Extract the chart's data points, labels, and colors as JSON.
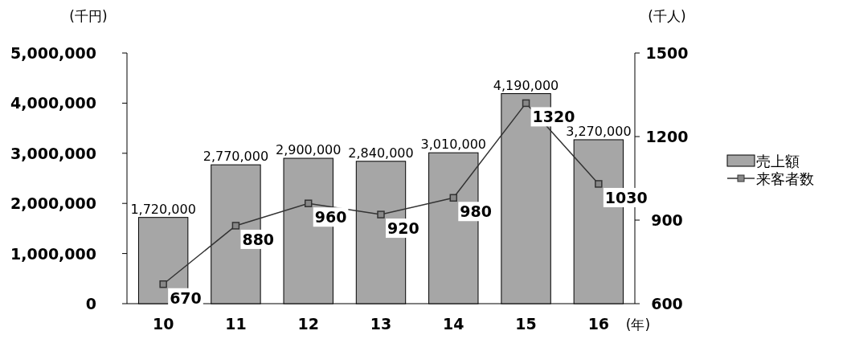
{
  "chart_data": {
    "type": "bar",
    "categories": [
      "10",
      "11",
      "12",
      "13",
      "14",
      "15",
      "16"
    ],
    "xlabel": "(年)",
    "ylabel": "(千円)",
    "y2label": "(千人)",
    "series": [
      {
        "name": "売上額",
        "color": "#a6a6a6",
        "values": [
          1720000,
          2770000,
          2900000,
          2840000,
          3010000,
          4190000,
          3270000
        ],
        "value_labels": [
          "1,720,000",
          "2,770,000",
          "2,900,000",
          "2,840,000",
          "3,010,000",
          "4,190,000",
          "3,270,000"
        ]
      },
      {
        "name": "来客者数",
        "type": "line",
        "axis": "y2",
        "color": "#333333",
        "marker": "square",
        "values": [
          670,
          880,
          960,
          920,
          980,
          1320,
          1030
        ],
        "value_labels": [
          "670",
          "880",
          "960",
          "920",
          "980",
          "1320",
          "1030"
        ]
      }
    ],
    "ylim": [
      0,
      5000000
    ],
    "yticks": [
      0,
      {
        "value": 1000000,
        "label": "1,000,000"
      },
      {
        "value": 2000000,
        "label": "2,000,000"
      },
      {
        "value": 3000000,
        "label": "3,000,000"
      },
      {
        "value": 4000000,
        "label": "4,000,000"
      },
      {
        "value": 5000000,
        "label": "5,000,000"
      }
    ],
    "y2lim": [
      600,
      1500
    ],
    "y2ticks": [
      600,
      900,
      1200,
      1500
    ],
    "legend": "right"
  }
}
